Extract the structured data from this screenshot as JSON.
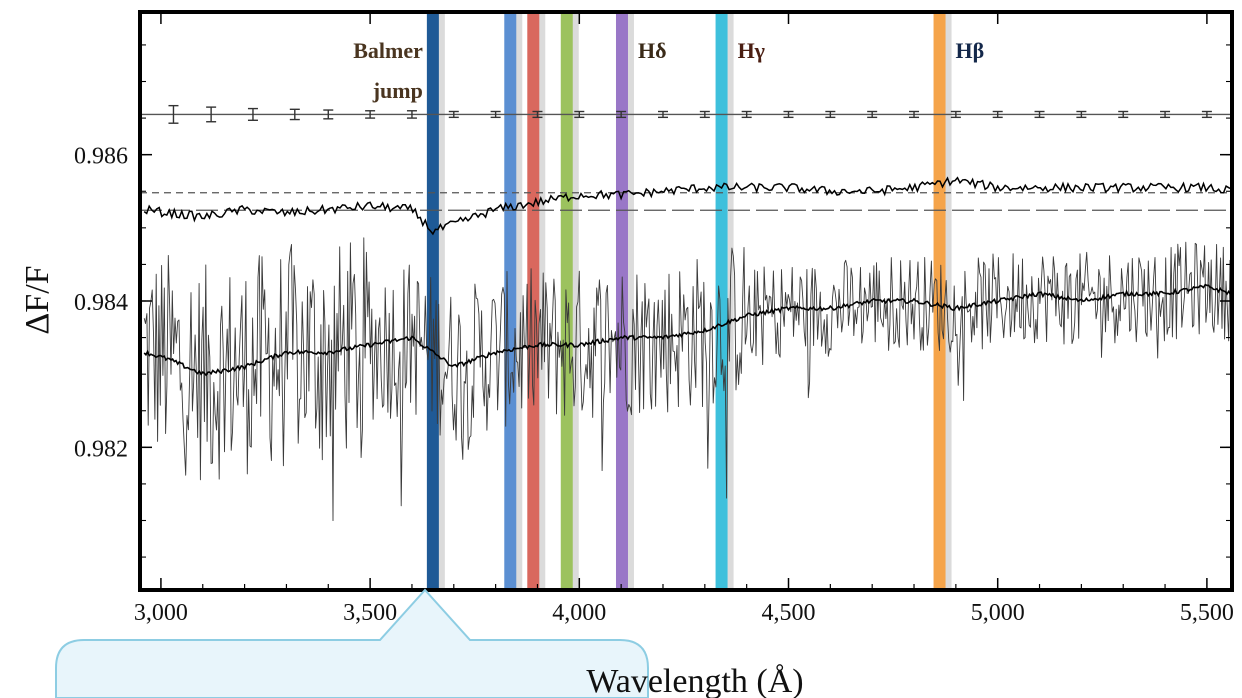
{
  "chart_data": {
    "type": "line",
    "xlabel": "Wavelength (Å)",
    "ylabel": "ΔF/F",
    "xlim": [
      2950,
      5560
    ],
    "ylim": [
      0.98005,
      0.98795
    ],
    "xticks": [
      3000,
      3500,
      4000,
      4500,
      5000,
      5500
    ],
    "xtick_labels": [
      "3,000",
      "3,500",
      "4,000",
      "4,500",
      "5,000",
      "5,500"
    ],
    "yticks": [
      0.982,
      0.984,
      0.986
    ],
    "ytick_labels": [
      "0.982",
      "0.984",
      "0.986"
    ],
    "grid": false,
    "series": [
      {
        "role": "noisy-low-resolution-transit-spectrum",
        "x": [
          2960,
          3020,
          3100,
          3200,
          3300,
          3400,
          3500,
          3600,
          3650,
          3700,
          3800,
          3900,
          4000,
          4100,
          4200,
          4300,
          4400,
          4500,
          4600,
          4700,
          4800,
          4900,
          5000,
          5100,
          5200,
          5300,
          5400,
          5500,
          5560
        ],
        "y": [
          0.9833,
          0.9832,
          0.983,
          0.9831,
          0.9833,
          0.9833,
          0.9834,
          0.9835,
          0.9833,
          0.9831,
          0.9833,
          0.9834,
          0.9834,
          0.9835,
          0.9835,
          0.9836,
          0.9838,
          0.9839,
          0.9839,
          0.984,
          0.984,
          0.9839,
          0.984,
          0.9841,
          0.984,
          0.9841,
          0.9841,
          0.9842,
          0.9841
        ],
        "noise_amplitude": 0.0012
      },
      {
        "role": "binned-transit-spectrum",
        "x": [
          2960,
          3020,
          3100,
          3200,
          3300,
          3400,
          3500,
          3600,
          3650,
          3700,
          3800,
          3900,
          4000,
          4100,
          4200,
          4300,
          4400,
          4500,
          4600,
          4700,
          4800,
          4900,
          5000,
          5100,
          5200,
          5300,
          5400,
          5500,
          5560
        ],
        "y": [
          0.98525,
          0.9852,
          0.98515,
          0.98525,
          0.9852,
          0.98525,
          0.9853,
          0.98525,
          0.98495,
          0.98505,
          0.98525,
          0.98535,
          0.98545,
          0.98545,
          0.9855,
          0.98555,
          0.98555,
          0.98555,
          0.9855,
          0.9855,
          0.98555,
          0.98565,
          0.98555,
          0.98555,
          0.98555,
          0.98555,
          0.98555,
          0.98555,
          0.9855
        ]
      },
      {
        "role": "error-bars",
        "x": [
          3030,
          3120,
          3220,
          3320,
          3400,
          3500,
          3600,
          3700,
          3800,
          3900,
          4000,
          4100,
          4200,
          4300,
          4400,
          4500,
          4600,
          4700,
          4800,
          4900,
          5000,
          5100,
          5200,
          5300,
          5400,
          5500
        ],
        "y": 0.98655,
        "half_height": [
          0.00012,
          0.0001,
          8e-05,
          7e-05,
          6e-05,
          5e-05,
          5e-05,
          4e-05,
          4e-05,
          4e-05,
          4e-05,
          4e-05,
          4e-05,
          4e-05,
          4e-05,
          4e-05,
          4e-05,
          4e-05,
          4e-05,
          4e-05,
          4e-05,
          4e-05,
          4e-05,
          4e-05,
          4e-05,
          4e-05
        ]
      }
    ],
    "reference_lines": [
      {
        "style": "solid",
        "y": 0.98655
      },
      {
        "style": "dashed-short",
        "y": 0.98548
      },
      {
        "style": "dashed-long",
        "y": 0.98524
      }
    ],
    "vertical_bands": [
      {
        "x": 3650,
        "color": "#1f5a96",
        "label": "Balmer\njump",
        "label_color": "#4a3520"
      },
      {
        "x": 3835,
        "color": "#5b8fd2",
        "label": ""
      },
      {
        "x": 3890,
        "color": "#d9685e",
        "label": ""
      },
      {
        "x": 3970,
        "color": "#9cc25e",
        "label": ""
      },
      {
        "x": 4102,
        "color": "#9977c7",
        "label": "Hδ",
        "label_color": "#3a2a18"
      },
      {
        "x": 4340,
        "color": "#3ec0dc",
        "label": "Hγ",
        "label_color": "#4a1e12"
      },
      {
        "x": 4861,
        "color": "#f5a44a",
        "label": "Hβ",
        "label_color": "#14284a"
      }
    ]
  },
  "callout": {
    "fill": "#e8f5fb",
    "stroke": "#8dcde3"
  }
}
